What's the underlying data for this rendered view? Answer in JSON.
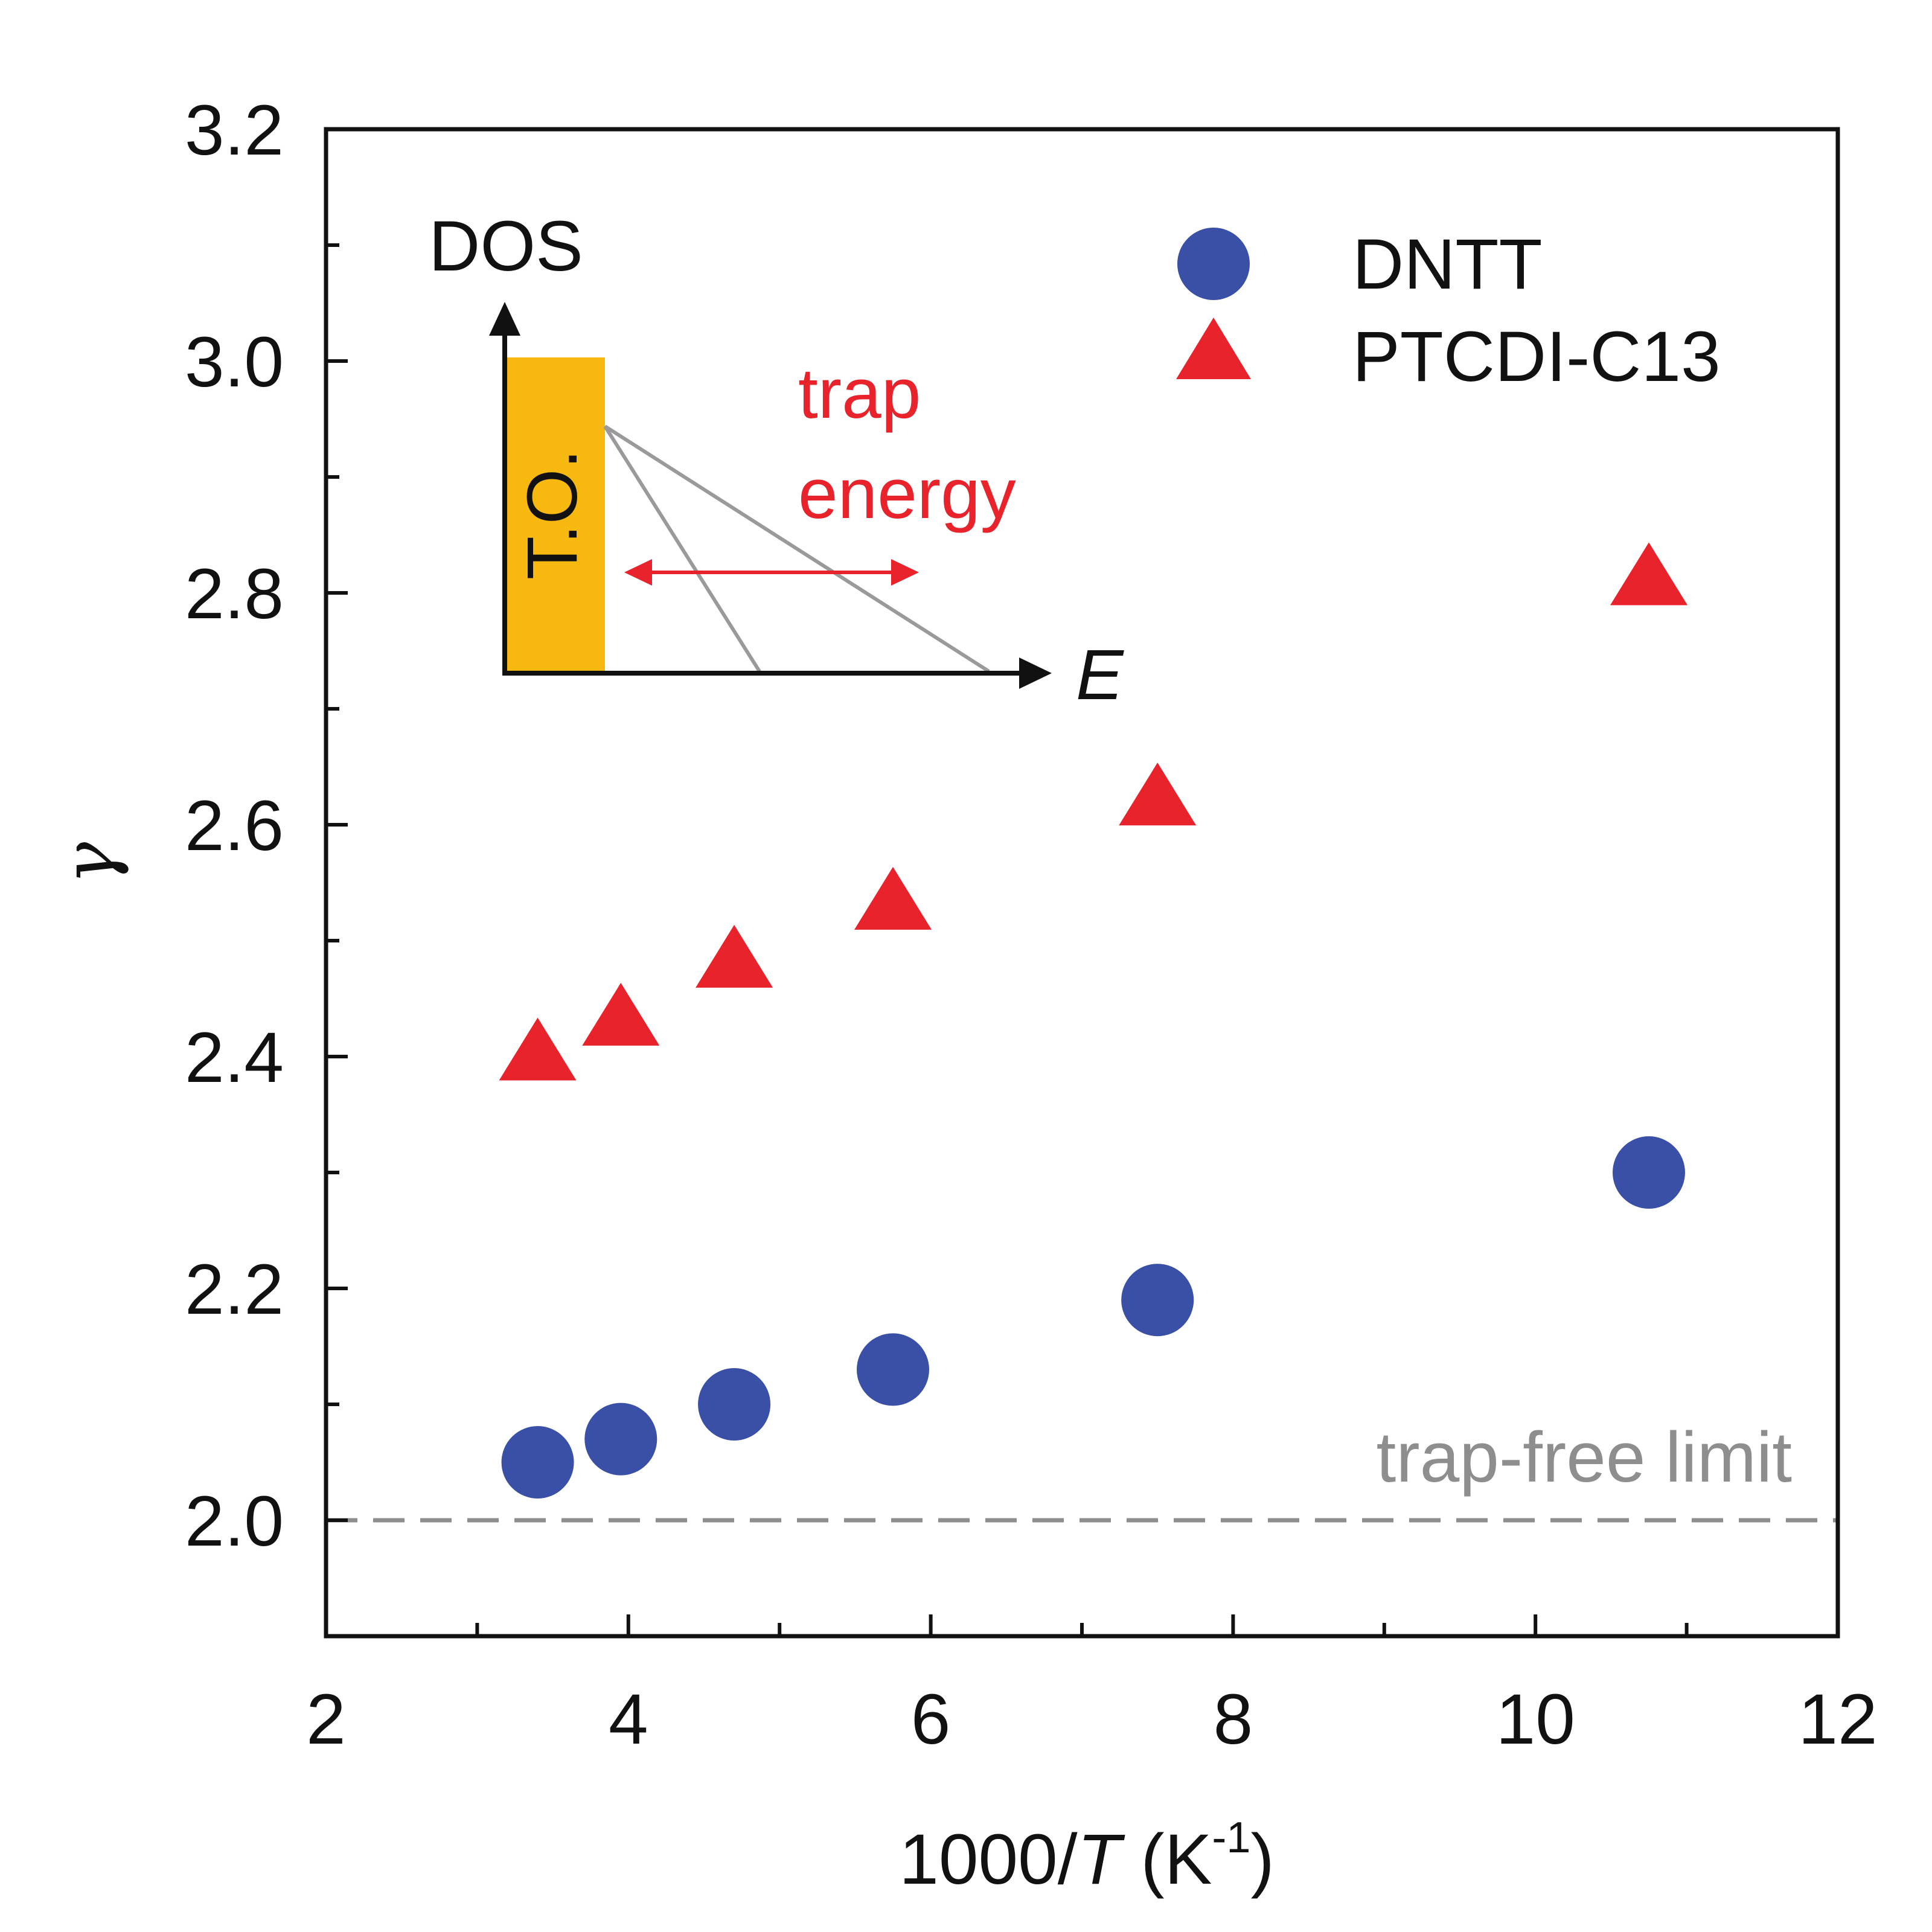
{
  "chart_data": {
    "type": "scatter",
    "title": "",
    "xlabel_parts": [
      "1000/",
      "T",
      " (K",
      "-1",
      ")"
    ],
    "ylabel": "γ",
    "xlim": [
      2,
      12
    ],
    "ylim": [
      1.9,
      3.2
    ],
    "xticks": [
      2,
      4,
      6,
      8,
      10,
      12
    ],
    "yticks": [
      2.0,
      2.2,
      2.4,
      2.6,
      2.8,
      3.0,
      3.2
    ],
    "grid": false,
    "legend_position": "top-right",
    "series": [
      {
        "name": "DNTT",
        "marker": "circle",
        "color": "#3a4fa6",
        "x": [
          3.4,
          3.95,
          4.7,
          5.75,
          7.5,
          10.75
        ],
        "y": [
          2.05,
          2.07,
          2.1,
          2.13,
          2.19,
          2.3
        ]
      },
      {
        "name": "PTCDI-C13",
        "marker": "triangle",
        "color": "#e8232b",
        "x": [
          3.4,
          3.95,
          4.7,
          5.75,
          7.5,
          10.75
        ],
        "y": [
          2.4,
          2.43,
          2.48,
          2.53,
          2.62,
          2.81
        ]
      }
    ],
    "reference_line": {
      "y": 2.0,
      "label": "trap-free limit",
      "color": "#8e8e8e"
    },
    "inset": {
      "y_axis_label": "DOS",
      "x_axis_label": "E",
      "box_label": "T.O.",
      "box_color": "#f7b90f",
      "arrow_label_line1": "trap",
      "arrow_label_line2": "energy"
    }
  }
}
